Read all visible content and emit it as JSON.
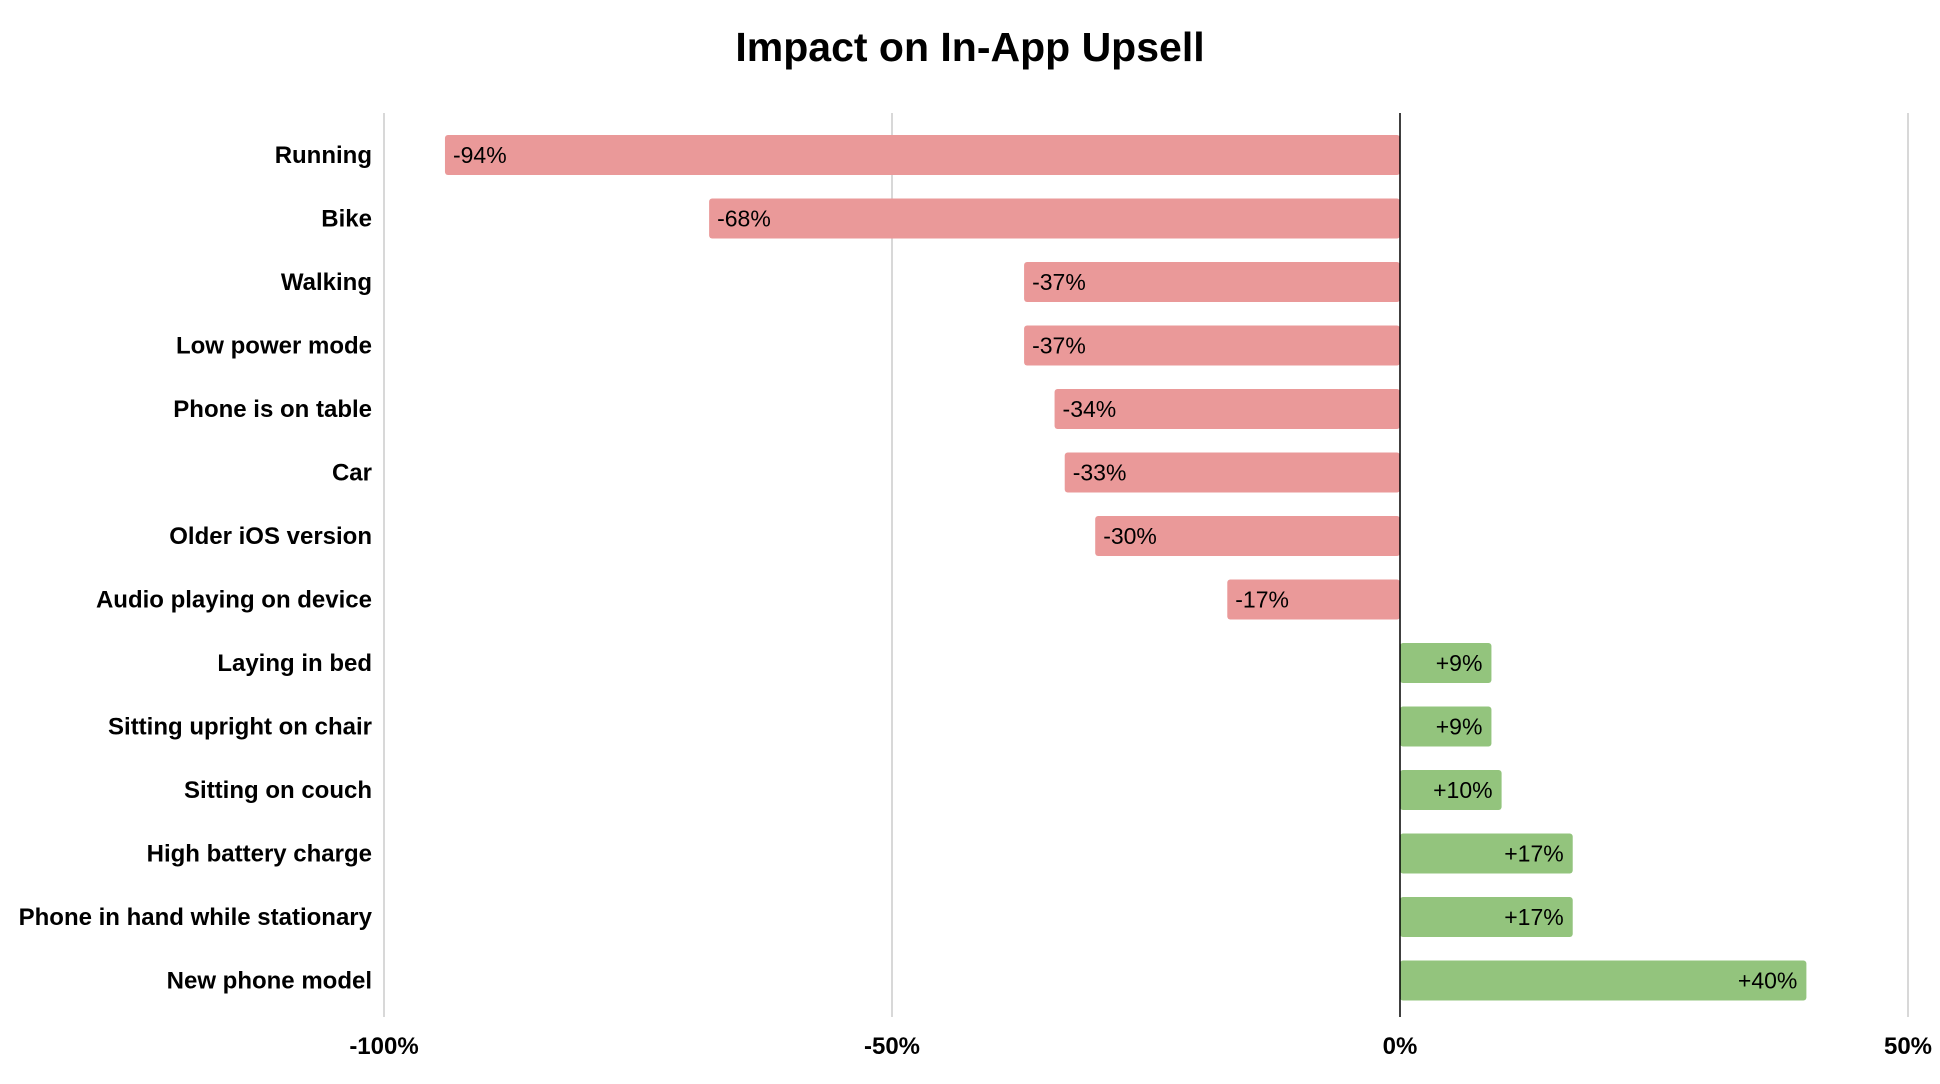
{
  "chart_data": {
    "type": "bar",
    "orientation": "horizontal",
    "title": "Impact on In-App Upsell",
    "xlabel": "",
    "ylabel": "",
    "categories": [
      "Running",
      "Bike",
      "Walking",
      "Low power mode",
      "Phone is on table",
      "Car",
      "Older iOS version",
      "Audio playing on device",
      "Laying in bed",
      "Sitting upright on chair",
      "Sitting on couch",
      "High battery charge",
      "Phone in hand while stationary",
      "New phone model"
    ],
    "values": [
      -94,
      -68,
      -37,
      -37,
      -34,
      -33,
      -30,
      -17,
      9,
      9,
      10,
      17,
      17,
      40
    ],
    "data_labels": [
      "-94%",
      "-68%",
      "-37%",
      "-37%",
      "-34%",
      "-33%",
      "-30%",
      "-17%",
      "+9%",
      "+9%",
      "+10%",
      "+17%",
      "+17%",
      "+40%"
    ],
    "xlim": [
      -100,
      50
    ],
    "xticks": [
      -100,
      -50,
      0,
      50
    ],
    "xtick_labels": [
      "-100%",
      "-50%",
      "0%",
      "50%"
    ],
    "grid": true,
    "legend": "none",
    "colors": {
      "negative": "#ea9999",
      "positive": "#93c47d",
      "grid": "#cccccc",
      "zero_line": "#000000"
    }
  }
}
